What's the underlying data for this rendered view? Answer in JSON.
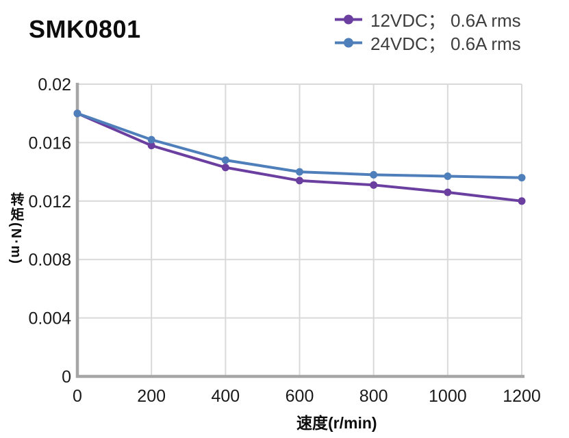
{
  "header": {
    "title": "SMK0801"
  },
  "chart_data": {
    "type": "line",
    "title": "SMK0801",
    "x": [
      0,
      200,
      400,
      600,
      800,
      1000,
      1200
    ],
    "series": [
      {
        "name": "12VDC； 0.6A rms",
        "color": "#6B3FA0",
        "values": [
          0.018,
          0.0158,
          0.0143,
          0.0134,
          0.0131,
          0.0126,
          0.012
        ]
      },
      {
        "name": "24VDC； 0.6A rms",
        "color": "#4E7FBA",
        "values": [
          0.018,
          0.0162,
          0.0148,
          0.014,
          0.0138,
          0.0137,
          0.0136
        ]
      }
    ],
    "xlabel": "速度(r/min)",
    "ylabel": "转矩(N·m)",
    "xlim": [
      0,
      1200
    ],
    "ylim": [
      0,
      0.02
    ],
    "xticks": {
      "values": [
        0,
        200,
        400,
        600,
        800,
        1000,
        1200
      ],
      "labels": [
        "0",
        "200",
        "400",
        "600",
        "800",
        "1000",
        "1200"
      ]
    },
    "yticks": {
      "values": [
        0,
        0.004,
        0.008,
        0.012,
        0.016,
        0.02
      ],
      "labels": [
        "0",
        "0.004",
        "0.008",
        "0.012",
        "0.016",
        "0.02"
      ]
    },
    "grid": true,
    "legend_position": "top-right",
    "colors": {
      "axis": "#A6A6A6",
      "grid": "#D9D9D9",
      "tick_text": "#1A1A1A",
      "legend_text": "#3D3D3D",
      "background": "#FFFFFF"
    }
  }
}
